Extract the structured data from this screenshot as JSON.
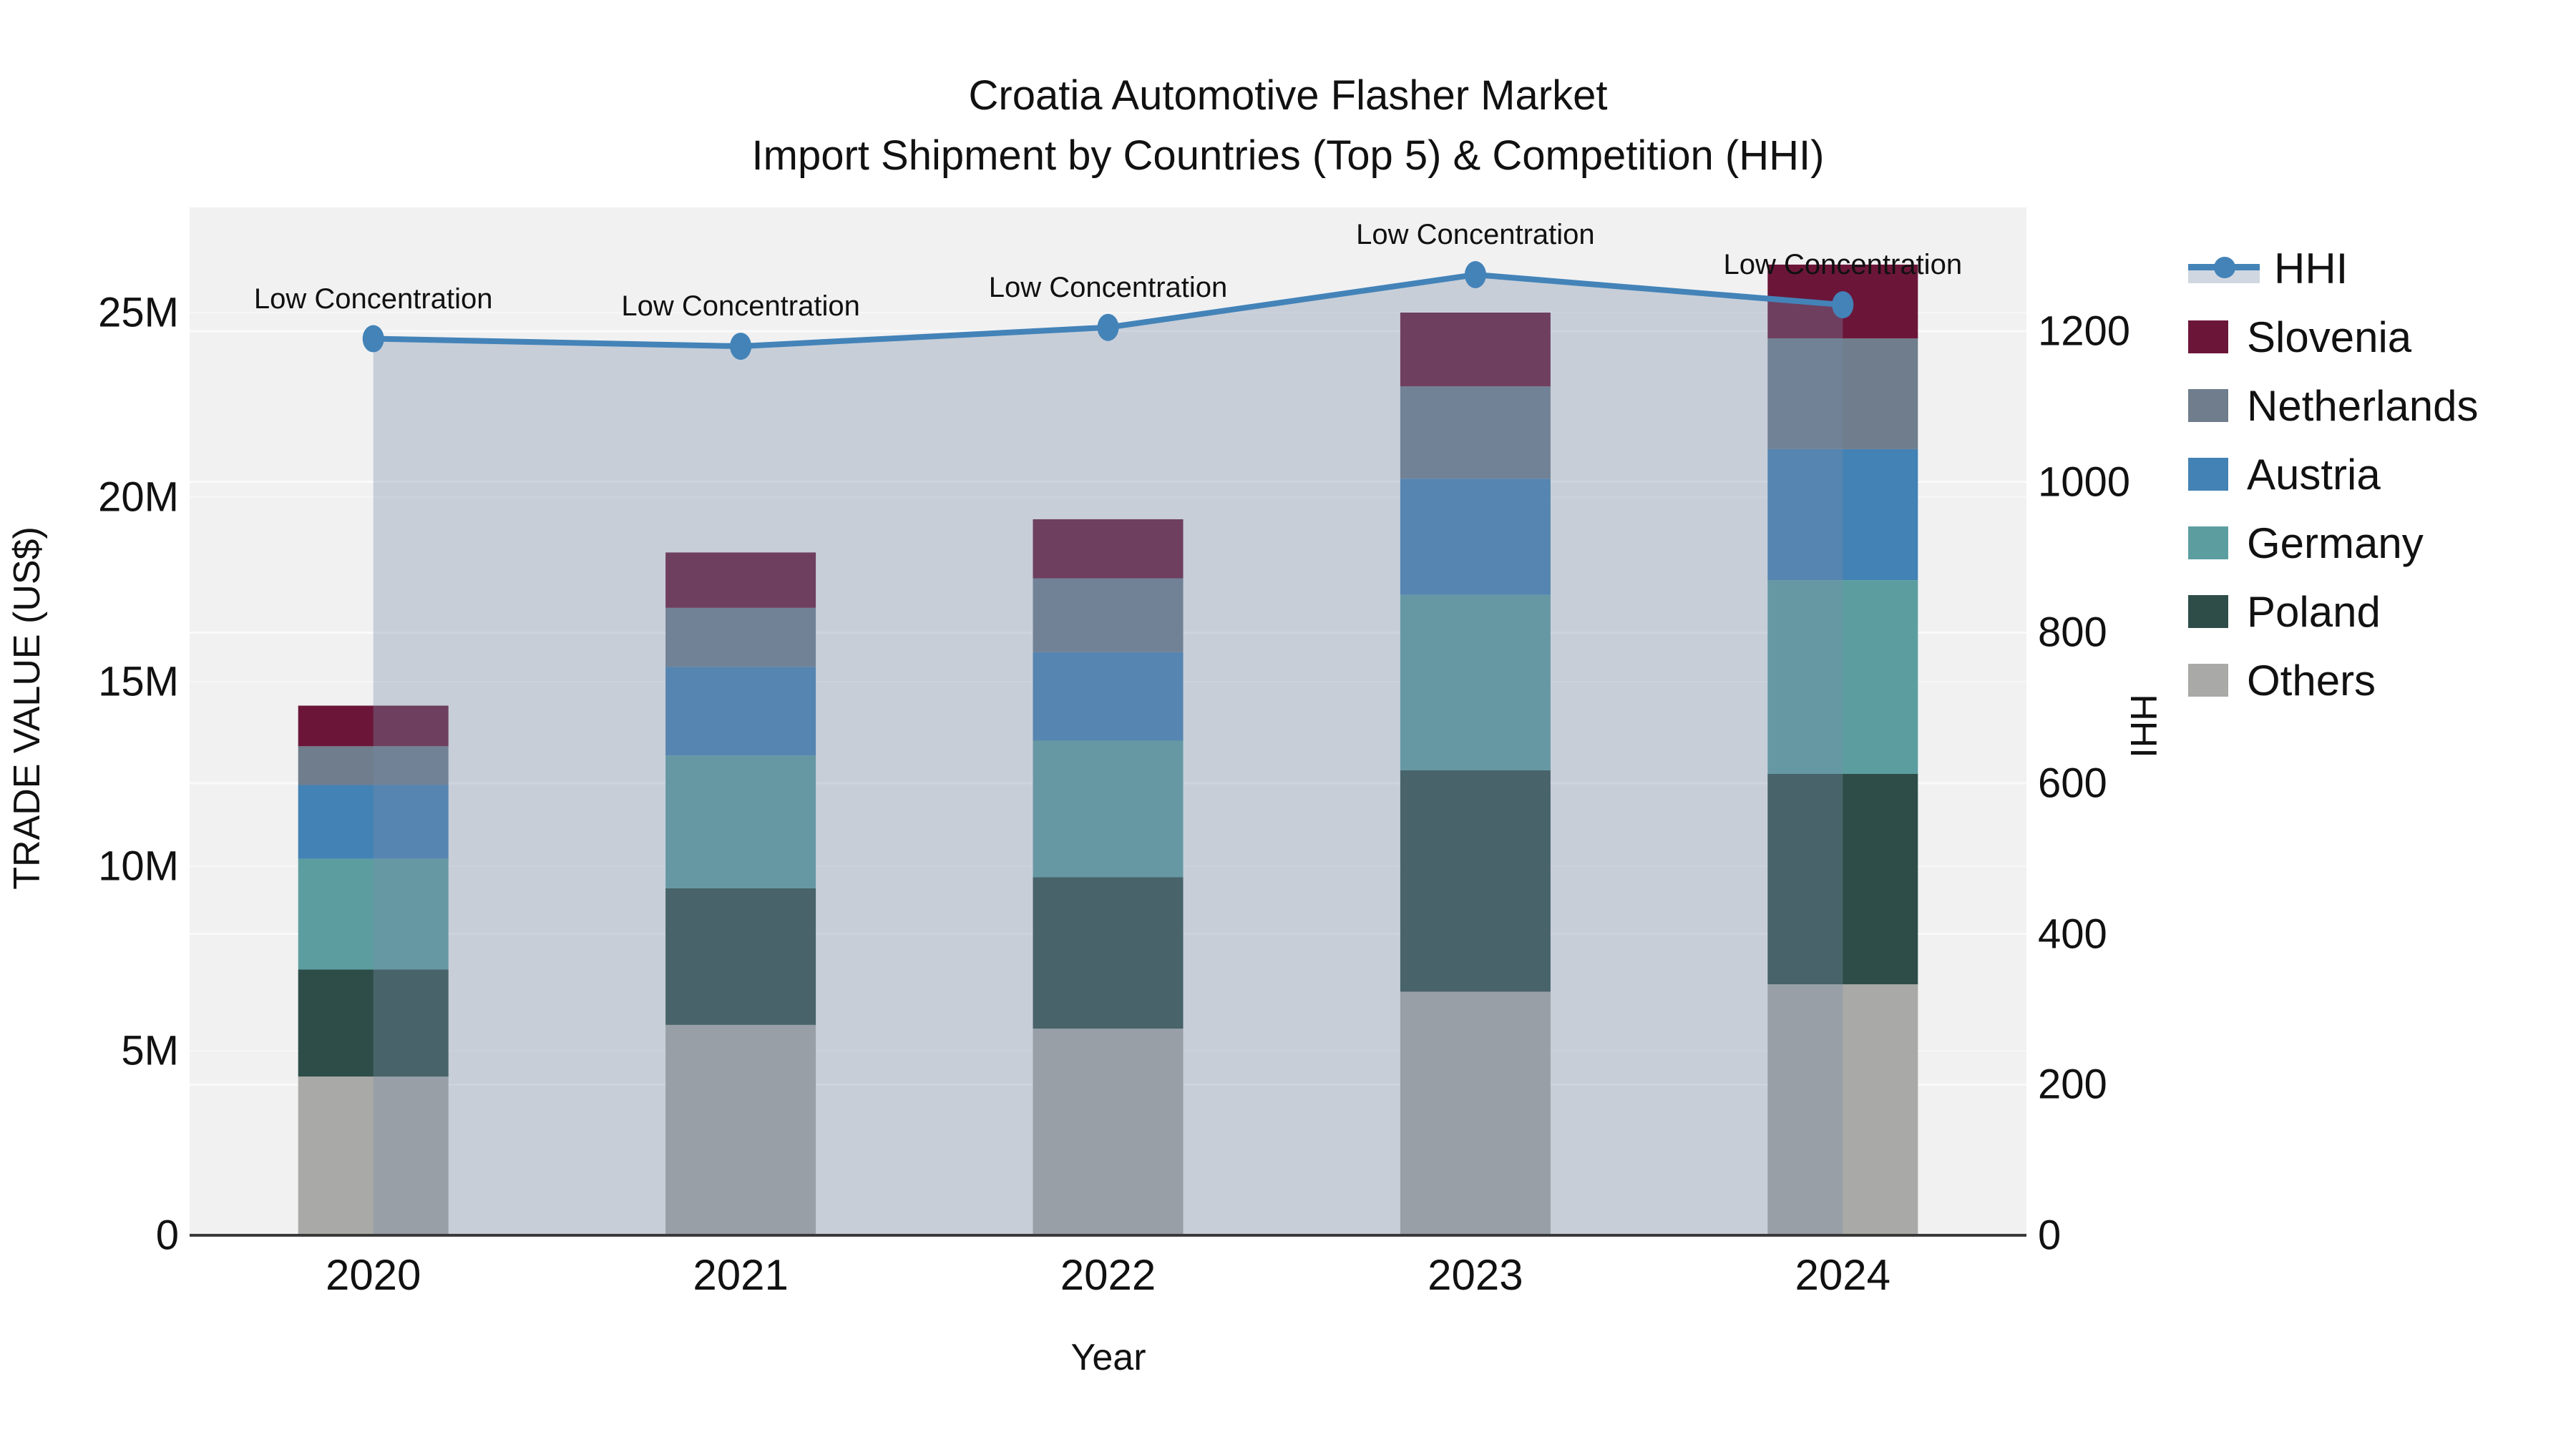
{
  "title": {
    "line1": "Croatia Automotive Flasher Market",
    "line2": "Import Shipment by Countries (Top 5) & Competition (HHI)"
  },
  "chart_data": {
    "type": "bar",
    "subtype": "stacked-bars-with-line-overlay",
    "unit": "M US$",
    "categories": [
      "2020",
      "2021",
      "2022",
      "2023",
      "2024"
    ],
    "series": [
      {
        "name": "Others",
        "color": "#a9a9a7",
        "values": [
          4.3,
          5.7,
          5.6,
          6.6,
          6.8
        ]
      },
      {
        "name": "Poland",
        "color": "#2e4d49",
        "values": [
          2.9,
          3.7,
          4.1,
          6.0,
          5.7
        ]
      },
      {
        "name": "Germany",
        "color": "#5c9ea0",
        "values": [
          3.0,
          3.6,
          3.7,
          4.75,
          5.25
        ]
      },
      {
        "name": "Austria",
        "color": "#4382b4",
        "values": [
          2.0,
          2.4,
          2.4,
          3.15,
          3.55
        ]
      },
      {
        "name": "Netherlands",
        "color": "#6f7d8c",
        "values": [
          1.05,
          1.6,
          2.0,
          2.5,
          3.0
        ]
      },
      {
        "name": "Slovenia",
        "color": "#6b1639",
        "values": [
          1.1,
          1.5,
          1.6,
          2.0,
          2.0
        ]
      }
    ],
    "totals": [
      14.35,
      18.5,
      19.4,
      25.0,
      26.3
    ],
    "line": {
      "name": "HHI",
      "color": "#4383b8",
      "area_fill": "rgba(120,140,170,0.35)",
      "values": [
        1190,
        1180,
        1205,
        1275,
        1235
      ]
    },
    "annotations": [
      "Low Concentration",
      "Low Concentration",
      "Low Concentration",
      "Low Concentration",
      "Low Concentration"
    ],
    "left_axis": {
      "title": "TRADE VALUE (US$)",
      "tick_labels": [
        "0",
        "5M",
        "10M",
        "15M",
        "20M",
        "25M"
      ],
      "tick_values": [
        0,
        5,
        10,
        15,
        20,
        25
      ],
      "range": [
        0,
        27.85
      ]
    },
    "right_axis": {
      "title": "HHI",
      "tick_labels": [
        "0",
        "200",
        "400",
        "600",
        "800",
        "1000",
        "1200"
      ],
      "tick_values": [
        0,
        200,
        400,
        600,
        800,
        1000,
        1200
      ],
      "range": [
        0,
        1364
      ]
    },
    "x_axis": {
      "title": "Year"
    },
    "legend": {
      "items": [
        {
          "label": "HHI",
          "type": "line",
          "color": "#4383b8"
        },
        {
          "label": "Slovenia",
          "type": "swatch",
          "color": "#6b1639"
        },
        {
          "label": "Netherlands",
          "type": "swatch",
          "color": "#6f7d8c"
        },
        {
          "label": "Austria",
          "type": "swatch",
          "color": "#4382b4"
        },
        {
          "label": "Germany",
          "type": "swatch",
          "color": "#5c9ea0"
        },
        {
          "label": "Poland",
          "type": "swatch",
          "color": "#2e4d49"
        },
        {
          "label": "Others",
          "type": "swatch",
          "color": "#a9a9a7"
        }
      ]
    },
    "style": {
      "plot_bg": "#f1f1f2",
      "axis_line_color": "#3a3a3a",
      "gridline_color": "rgba(255,255,255,0.65)"
    }
  }
}
